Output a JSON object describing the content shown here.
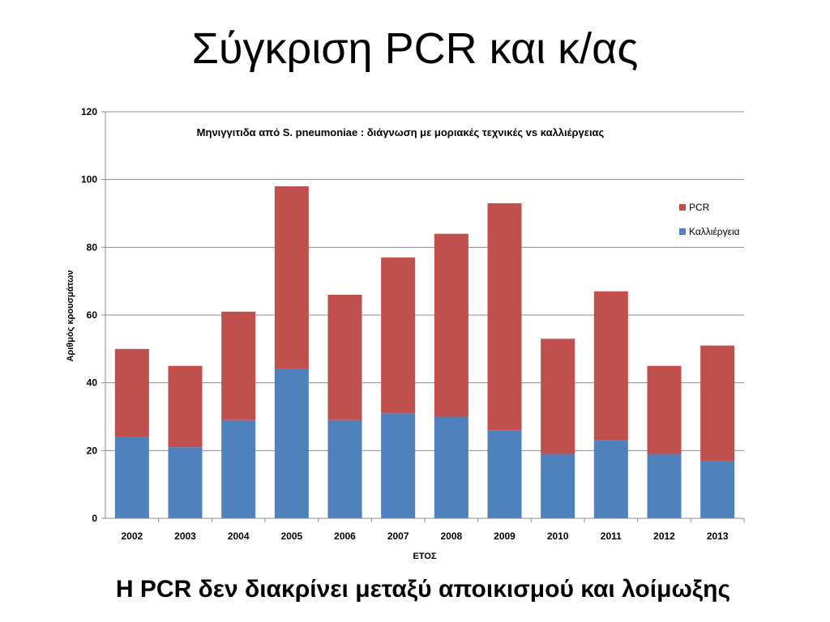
{
  "slide": {
    "title": "Σύγκριση PCR και κ/ας",
    "footer": "Η PCR δεν διακρίνει μεταξύ αποικισμού και λοίμωξης"
  },
  "chart_data": {
    "type": "bar",
    "stacked": true,
    "title": "Μηνιγγιτιδα από S. pneumoniae : διάγνωση με μοριακές τεχνικές vs καλλιέργειας",
    "xlabel": "ΕΤΟΣ",
    "ylabel": "Αριθμός κρουσμάτων",
    "ylim": [
      0,
      120
    ],
    "yticks": [
      0,
      20,
      40,
      60,
      80,
      100,
      120
    ],
    "grid": true,
    "legend_position": "right",
    "categories": [
      "2002",
      "2003",
      "2004",
      "2005",
      "2006",
      "2007",
      "2008",
      "2009",
      "2010",
      "2011",
      "2012",
      "2013"
    ],
    "series": [
      {
        "name": "Καλλιέργεια",
        "color": "#4F81BD",
        "values": [
          24,
          21,
          29,
          44,
          29,
          31,
          30,
          26,
          19,
          23,
          19,
          17
        ]
      },
      {
        "name": "PCR",
        "color": "#C0504D",
        "values": [
          26,
          24,
          32,
          54,
          37,
          46,
          54,
          67,
          34,
          44,
          26,
          34
        ]
      }
    ],
    "legend_order": [
      "PCR",
      "Καλλιέργεια"
    ]
  }
}
